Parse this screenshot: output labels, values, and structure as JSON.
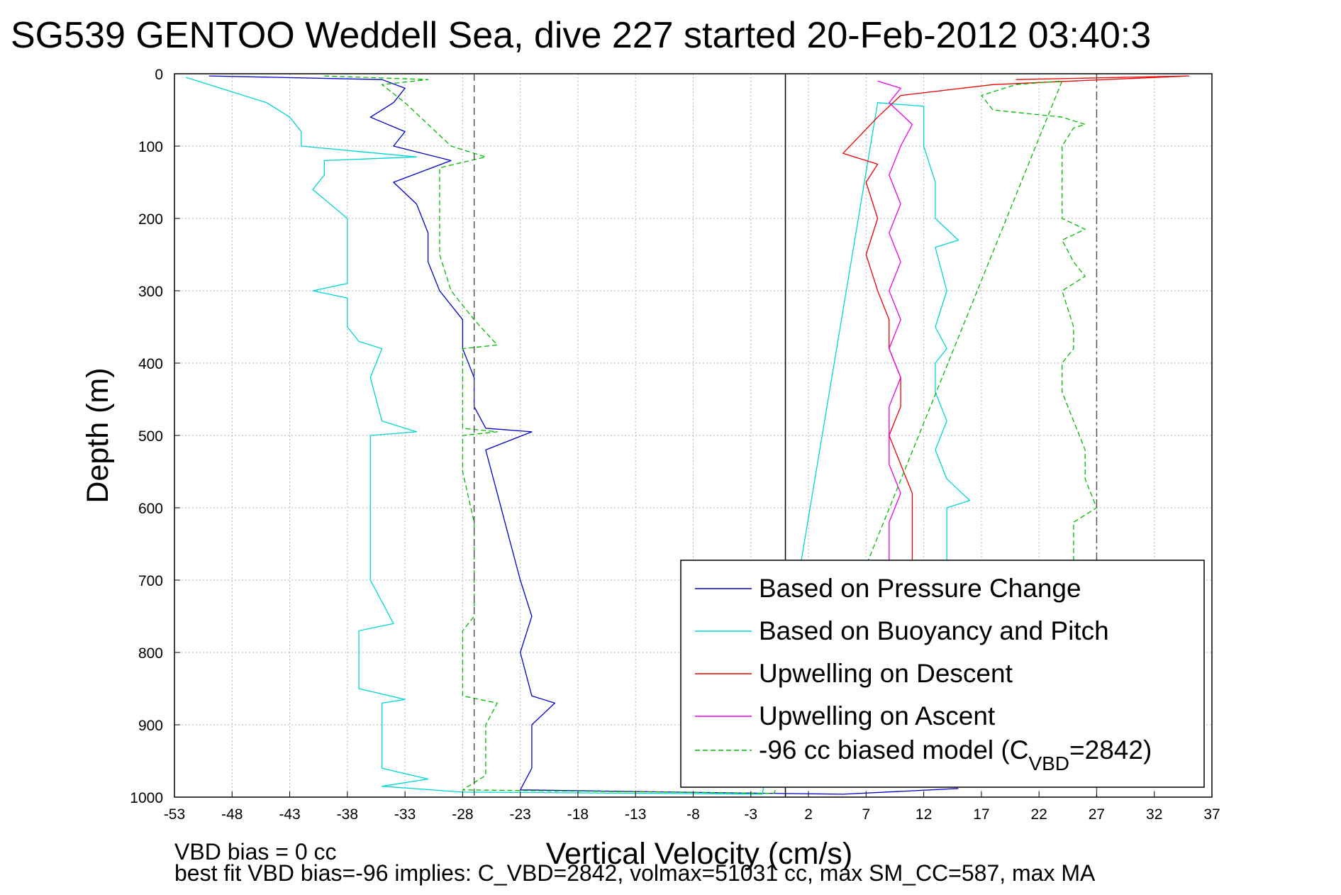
{
  "chart_data": {
    "type": "line",
    "title": "SG539 GENTOO Weddell Sea, dive 227 started 20-Feb-2012 03:40:3",
    "xlabel": "Vertical Velocity (cm/s)",
    "ylabel": "Depth (m)",
    "xlim": [
      -53,
      37
    ],
    "ylim": [
      0,
      1000
    ],
    "y_reversed": true,
    "grid": true,
    "x_ticks": [
      "-53",
      "-48",
      "-43",
      "-38",
      "-33",
      "-28",
      "-23",
      "-18",
      "-13",
      "-8",
      "-3",
      "2",
      "7",
      "12",
      "17",
      "22",
      "27",
      "32",
      "37"
    ],
    "y_ticks": [
      "0",
      "100",
      "200",
      "300",
      "400",
      "500",
      "600",
      "700",
      "800",
      "900",
      "1000"
    ],
    "reference_lines": [
      {
        "x": -27,
        "style": "dashed",
        "color": "#555555"
      },
      {
        "x": 0,
        "style": "solid",
        "color": "#000000"
      },
      {
        "x": 27,
        "style": "dashdot",
        "color": "#555555"
      }
    ],
    "legend_position": "bottom-right",
    "series": [
      {
        "name": "Based on Pressure Change",
        "color": "#0000cc",
        "style": "solid",
        "points": [
          [
            -50,
            3
          ],
          [
            -35,
            8
          ],
          [
            -33,
            20
          ],
          [
            -34,
            40
          ],
          [
            -36,
            60
          ],
          [
            -33,
            80
          ],
          [
            -34,
            100
          ],
          [
            -29,
            120
          ],
          [
            -34,
            150
          ],
          [
            -32,
            180
          ],
          [
            -31,
            220
          ],
          [
            -31,
            260
          ],
          [
            -30,
            300
          ],
          [
            -28,
            340
          ],
          [
            -28,
            380
          ],
          [
            -27,
            420
          ],
          [
            -27,
            460
          ],
          [
            -26,
            490
          ],
          [
            -22,
            495
          ],
          [
            -26,
            520
          ],
          [
            -25,
            580
          ],
          [
            -24,
            640
          ],
          [
            -23,
            700
          ],
          [
            -22,
            750
          ],
          [
            -23,
            800
          ],
          [
            -22,
            860
          ],
          [
            -20,
            870
          ],
          [
            -22,
            900
          ],
          [
            -22,
            960
          ],
          [
            -23,
            990
          ],
          [
            -5,
            994
          ],
          [
            5,
            996
          ],
          [
            15,
            988
          ]
        ]
      },
      {
        "name": "Based on Buoyancy and Pitch",
        "color": "#00d5d5",
        "style": "solid",
        "points": [
          [
            -52,
            5
          ],
          [
            -49,
            20
          ],
          [
            -45,
            40
          ],
          [
            -43,
            60
          ],
          [
            -42,
            80
          ],
          [
            -42,
            100
          ],
          [
            -32,
            115
          ],
          [
            -40,
            120
          ],
          [
            -40,
            140
          ],
          [
            -41,
            160
          ],
          [
            -38,
            200
          ],
          [
            -38,
            250
          ],
          [
            -38,
            290
          ],
          [
            -41,
            300
          ],
          [
            -38,
            310
          ],
          [
            -38,
            350
          ],
          [
            -37,
            370
          ],
          [
            -35,
            380
          ],
          [
            -36,
            420
          ],
          [
            -35,
            480
          ],
          [
            -32,
            495
          ],
          [
            -36,
            500
          ],
          [
            -36,
            550
          ],
          [
            -36,
            620
          ],
          [
            -36,
            700
          ],
          [
            -34,
            760
          ],
          [
            -37,
            770
          ],
          [
            -37,
            800
          ],
          [
            -37,
            850
          ],
          [
            -33,
            865
          ],
          [
            -35,
            870
          ],
          [
            -35,
            920
          ],
          [
            -35,
            960
          ],
          [
            -31,
            975
          ],
          [
            -35,
            985
          ],
          [
            -28,
            993
          ],
          [
            -10,
            995
          ],
          [
            -2,
            996
          ],
          [
            8,
            40
          ],
          [
            12,
            45
          ],
          [
            12,
            100
          ],
          [
            13,
            150
          ],
          [
            13,
            200
          ],
          [
            15,
            230
          ],
          [
            13,
            240
          ],
          [
            14,
            300
          ],
          [
            13,
            350
          ],
          [
            14,
            380
          ],
          [
            13,
            400
          ],
          [
            13,
            440
          ],
          [
            14,
            480
          ],
          [
            13,
            520
          ],
          [
            14,
            560
          ],
          [
            16,
            590
          ],
          [
            14,
            600
          ],
          [
            14,
            650
          ],
          [
            14,
            700
          ]
        ]
      },
      {
        "name": "Upwelling on Descent",
        "color": "#ee0000",
        "style": "solid",
        "points": [
          [
            20,
            8
          ],
          [
            35,
            3
          ],
          [
            25,
            10
          ],
          [
            18,
            15
          ],
          [
            10,
            30
          ],
          [
            8,
            60
          ],
          [
            5,
            110
          ],
          [
            8,
            125
          ],
          [
            7,
            150
          ],
          [
            8,
            200
          ],
          [
            7,
            250
          ],
          [
            8,
            300
          ],
          [
            9,
            340
          ],
          [
            9,
            380
          ],
          [
            10,
            420
          ],
          [
            10,
            460
          ],
          [
            9,
            500
          ],
          [
            10,
            540
          ],
          [
            11,
            580
          ],
          [
            11,
            620
          ],
          [
            11,
            650
          ],
          [
            11,
            700
          ]
        ]
      },
      {
        "name": "Upwelling on Ascent",
        "color": "#ee00ee",
        "style": "solid",
        "points": [
          [
            8,
            10
          ],
          [
            10,
            20
          ],
          [
            9,
            40
          ],
          [
            11,
            70
          ],
          [
            10,
            100
          ],
          [
            9,
            140
          ],
          [
            10,
            180
          ],
          [
            9,
            220
          ],
          [
            10,
            260
          ],
          [
            9,
            300
          ],
          [
            10,
            340
          ],
          [
            9,
            380
          ],
          [
            10,
            420
          ],
          [
            9,
            460
          ],
          [
            9,
            500
          ],
          [
            9,
            540
          ],
          [
            10,
            580
          ],
          [
            9,
            620
          ],
          [
            9,
            660
          ],
          [
            9,
            700
          ]
        ]
      },
      {
        "name": "-96 cc biased model (C<sub>VBD</sub>=2842)",
        "color": "#00bb00",
        "style": "dashed",
        "points": [
          [
            -40,
            3
          ],
          [
            -31,
            8
          ],
          [
            -35,
            15
          ],
          [
            -33,
            40
          ],
          [
            -31,
            70
          ],
          [
            -29,
            100
          ],
          [
            -26,
            115
          ],
          [
            -30,
            130
          ],
          [
            -30,
            160
          ],
          [
            -30,
            200
          ],
          [
            -30,
            250
          ],
          [
            -29,
            300
          ],
          [
            -27,
            340
          ],
          [
            -25,
            375
          ],
          [
            -28,
            380
          ],
          [
            -28,
            420
          ],
          [
            -28,
            460
          ],
          [
            -28,
            490
          ],
          [
            -25,
            495
          ],
          [
            -28,
            500
          ],
          [
            -28,
            550
          ],
          [
            -27,
            620
          ],
          [
            -27,
            700
          ],
          [
            -27,
            750
          ],
          [
            -28,
            770
          ],
          [
            -28,
            800
          ],
          [
            -28,
            860
          ],
          [
            -25,
            870
          ],
          [
            -26,
            900
          ],
          [
            -26,
            950
          ],
          [
            -26,
            970
          ],
          [
            -28,
            990
          ],
          [
            -5,
            994
          ],
          [
            -1,
            995
          ],
          [
            24,
            10
          ],
          [
            20,
            15
          ],
          [
            17,
            30
          ],
          [
            18,
            50
          ],
          [
            24,
            60
          ],
          [
            26,
            70
          ],
          [
            25,
            75
          ],
          [
            24,
            100
          ],
          [
            24,
            150
          ],
          [
            24,
            200
          ],
          [
            26,
            215
          ],
          [
            24,
            230
          ],
          [
            25,
            260
          ],
          [
            26,
            280
          ],
          [
            24,
            300
          ],
          [
            25,
            350
          ],
          [
            25,
            380
          ],
          [
            24,
            400
          ],
          [
            24,
            440
          ],
          [
            25,
            480
          ],
          [
            26,
            520
          ],
          [
            26,
            560
          ],
          [
            27,
            600
          ],
          [
            25,
            620
          ],
          [
            25,
            650
          ],
          [
            25,
            700
          ]
        ]
      }
    ],
    "annotations": [
      "VBD bias = 0 cc",
      "best fit VBD bias=-96 implies: C_VBD=2842, volmax=51031 cc, max SM_CC=587, max MA"
    ]
  }
}
